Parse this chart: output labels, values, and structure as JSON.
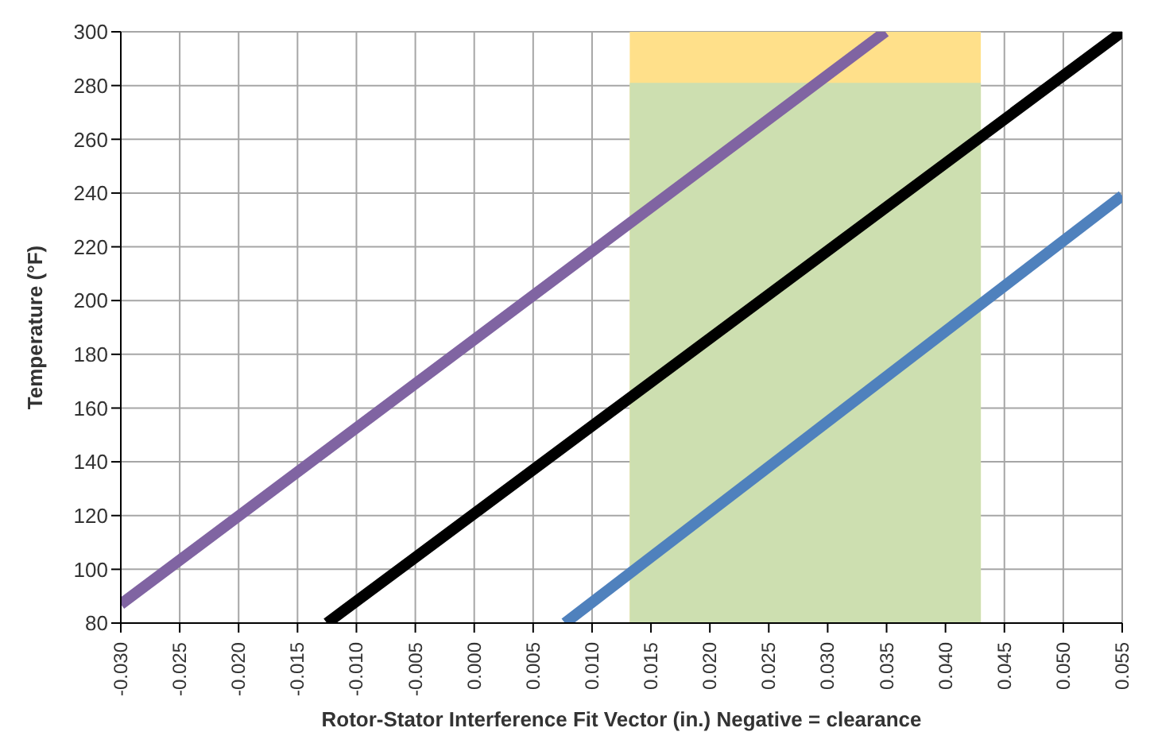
{
  "chart_data": {
    "type": "line",
    "xlabel": "Rotor-Stator Interference Fit Vector (in.) Negative = clearance",
    "ylabel": "Temperature (°F)",
    "series": [
      {
        "type": "area",
        "color": "#ffe08a",
        "x": [
          0.0132,
          0.043
        ],
        "values": [
          300,
          300
        ]
      },
      {
        "type": "area",
        "color": "#cddfb0",
        "x": [
          0.0132,
          0.043
        ],
        "values": [
          281,
          281
        ]
      },
      {
        "color": "#8064a2",
        "x": [
          -0.03,
          0.0349
        ],
        "values": [
          87,
          300
        ]
      },
      {
        "color": "#000000",
        "x": [
          -0.0125,
          0.055
        ],
        "values": [
          80,
          300
        ]
      },
      {
        "color": "#4f81bd",
        "x": [
          0.0077,
          0.055
        ],
        "values": [
          80,
          239
        ]
      }
    ],
    "xlim": [
      -0.03,
      0.055
    ],
    "xticks": [
      {
        "value": -0.03,
        "label": "-0.030"
      },
      {
        "value": -0.025,
        "label": "-0.025"
      },
      {
        "value": -0.02,
        "label": "-0.020"
      },
      {
        "value": -0.015,
        "label": "-0.015"
      },
      {
        "value": -0.01,
        "label": "-0.010"
      },
      {
        "value": -0.005,
        "label": "-0.005"
      },
      {
        "value": 0,
        "label": "0.000"
      },
      {
        "value": 0.005,
        "label": "0.005"
      },
      {
        "value": 0.01,
        "label": "0.010"
      },
      {
        "value": 0.015,
        "label": "0.015"
      },
      {
        "value": 0.02,
        "label": "0.020"
      },
      {
        "value": 0.025,
        "label": "0.025"
      },
      {
        "value": 0.03,
        "label": "0.030"
      },
      {
        "value": 0.035,
        "label": "0.035"
      },
      {
        "value": 0.04,
        "label": "0.040"
      },
      {
        "value": 0.045,
        "label": "0.045"
      },
      {
        "value": 0.05,
        "label": "0.050"
      },
      {
        "value": 0.055,
        "label": "0.055"
      }
    ],
    "ylim": [
      80,
      300
    ],
    "yticks": [
      80,
      100,
      120,
      140,
      160,
      180,
      200,
      220,
      240,
      260,
      280,
      300
    ],
    "grid": true,
    "marker": "none",
    "line_style": "solid"
  }
}
